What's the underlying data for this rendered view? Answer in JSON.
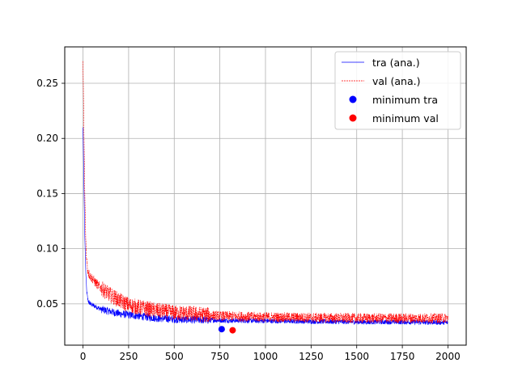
{
  "chart_data": {
    "type": "line",
    "title": "",
    "xlabel": "",
    "ylabel": "",
    "xlim": [
      -100,
      2100
    ],
    "ylim": [
      0.0125,
      0.283
    ],
    "grid": true,
    "legend_position": "top-right",
    "x_ticks": [
      0,
      250,
      500,
      750,
      1000,
      1250,
      1500,
      1750,
      2000
    ],
    "x_tick_labels": [
      "0",
      "250",
      "500",
      "750",
      "1000",
      "1250",
      "1500",
      "1750",
      "2000"
    ],
    "y_ticks": [
      0.05,
      0.1,
      0.15,
      0.2,
      0.25
    ],
    "y_tick_labels": [
      "0.05",
      "0.10",
      "0.15",
      "0.20",
      "0.25"
    ],
    "series": [
      {
        "name": "tra (ana.)",
        "style": "solid",
        "color": "#0000ff",
        "x": [
          0,
          5,
          10,
          15,
          20,
          25,
          30,
          40,
          50,
          75,
          100,
          150,
          200,
          250,
          300,
          400,
          500,
          600,
          750,
          1000,
          1250,
          1500,
          1750,
          2000
        ],
        "values": [
          0.21,
          0.16,
          0.11,
          0.08,
          0.062,
          0.055,
          0.052,
          0.05,
          0.049,
          0.047,
          0.045,
          0.043,
          0.041,
          0.04,
          0.039,
          0.037,
          0.036,
          0.0355,
          0.035,
          0.0345,
          0.034,
          0.0335,
          0.0335,
          0.033
        ]
      },
      {
        "name": "val (ana.)",
        "style": "dashed",
        "color": "#ff0000",
        "x": [
          0,
          5,
          10,
          15,
          20,
          25,
          30,
          40,
          50,
          75,
          100,
          150,
          200,
          250,
          300,
          400,
          500,
          600,
          750,
          1000,
          1250,
          1500,
          1750,
          2000
        ],
        "values": [
          0.27,
          0.21,
          0.15,
          0.11,
          0.09,
          0.082,
          0.078,
          0.075,
          0.073,
          0.068,
          0.064,
          0.058,
          0.053,
          0.049,
          0.047,
          0.044,
          0.042,
          0.041,
          0.039,
          0.038,
          0.0375,
          0.037,
          0.037,
          0.037
        ]
      },
      {
        "name": "minimum tra",
        "style": "marker",
        "color": "#0000ff",
        "x": [
          760
        ],
        "values": [
          0.027
        ]
      },
      {
        "name": "minimum val",
        "style": "marker",
        "color": "#ff0000",
        "x": [
          820
        ],
        "values": [
          0.026
        ]
      }
    ]
  }
}
